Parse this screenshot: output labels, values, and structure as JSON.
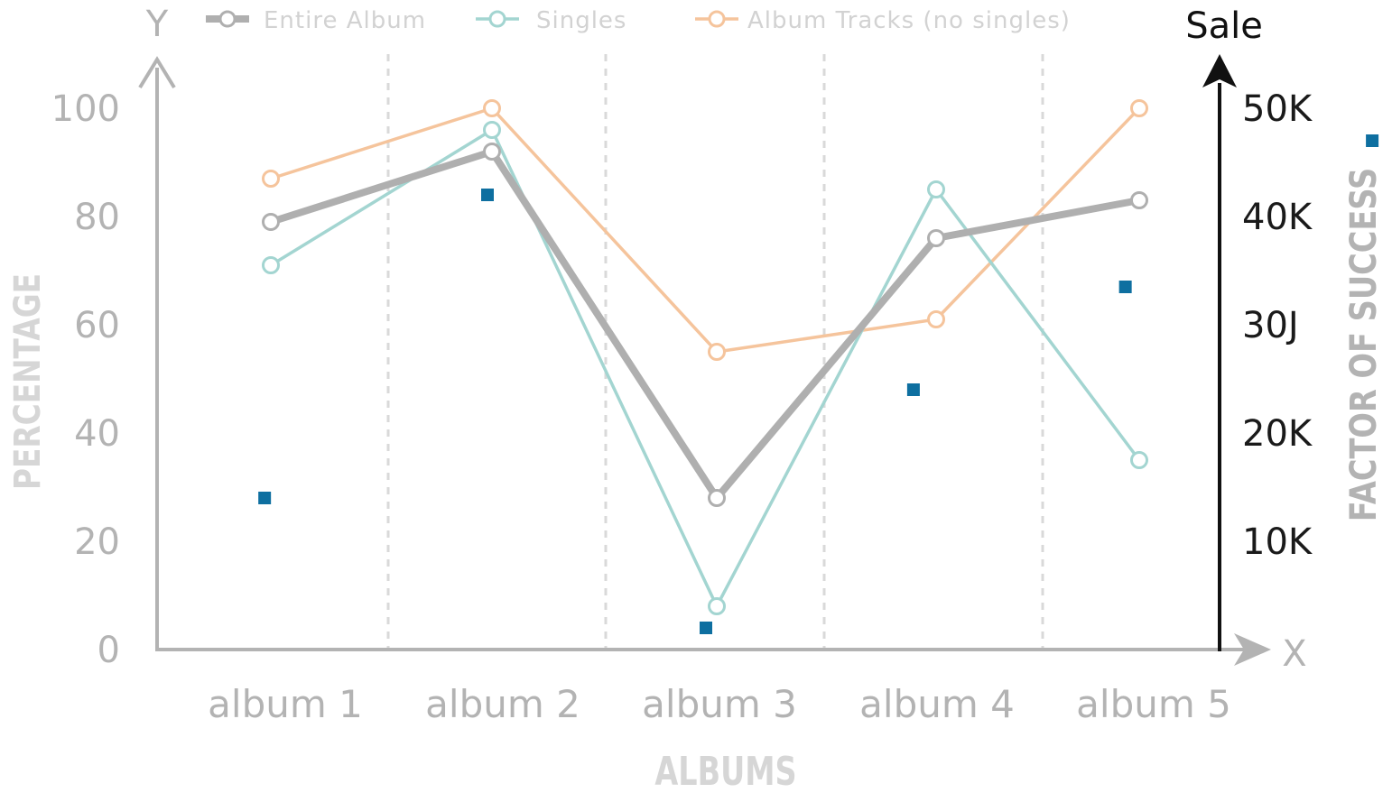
{
  "chart_data": {
    "type": "line",
    "categories": [
      "album 1",
      "album 2",
      "album 3",
      "album 4",
      "album 5"
    ],
    "series": [
      {
        "name": "Entire Album",
        "color": "#afafaf",
        "values": [
          79,
          92,
          28,
          76,
          83
        ]
      },
      {
        "name": "Singles",
        "color": "#a3d5d1",
        "values": [
          71,
          96,
          8,
          85,
          35
        ]
      },
      {
        "name": "Album Tracks (no singles)",
        "color": "#f5c49c",
        "values": [
          87,
          100,
          55,
          61,
          100
        ]
      }
    ],
    "factor_of_success": {
      "type": "scatter",
      "color": "#0e6fa0",
      "x": [
        0.98,
        2.0,
        3.0,
        3.95,
        4.92,
        6.05
      ],
      "y": [
        14,
        42,
        2,
        24,
        33.5,
        47
      ]
    },
    "y_axis_left": {
      "letter": "Y",
      "title": "PERCENTAGE",
      "ticks": [
        "0",
        "20",
        "40",
        "60",
        "80",
        "100"
      ],
      "range": [
        0,
        100
      ]
    },
    "y_axis_right": {
      "letter": "Sale",
      "title": "FACTOR OF SUCCESS",
      "ticks": [
        "10K",
        "20K",
        "30J",
        "40K",
        "50K"
      ],
      "range": [
        0,
        50
      ]
    },
    "x_axis": {
      "letter": "X",
      "title": "ALBUMS"
    },
    "grid": "vertical-dashed",
    "legend_position": "top"
  }
}
